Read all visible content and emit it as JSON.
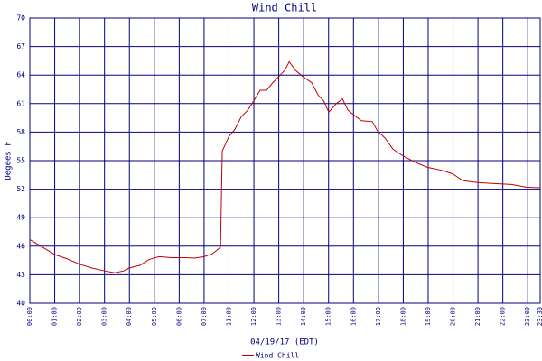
{
  "chart_data": {
    "type": "line",
    "title": "Wind Chill",
    "x_label": "04/19/17 (EDT)",
    "y_label": "Degees F",
    "xlim": [
      0,
      20.5
    ],
    "xticks": [
      {
        "value": 0,
        "label": "00:00"
      },
      {
        "value": 1,
        "label": "01:00"
      },
      {
        "value": 2,
        "label": "02:00"
      },
      {
        "value": 3,
        "label": "03:00"
      },
      {
        "value": 4,
        "label": "04:00"
      },
      {
        "value": 5,
        "label": "05:00"
      },
      {
        "value": 6,
        "label": "06:00"
      },
      {
        "value": 7,
        "label": "07:00"
      },
      {
        "value": 8,
        "label": "11:00"
      },
      {
        "value": 9,
        "label": "12:00"
      },
      {
        "value": 10,
        "label": "13:00"
      },
      {
        "value": 11,
        "label": "14:00"
      },
      {
        "value": 12,
        "label": "15:00"
      },
      {
        "value": 13,
        "label": "16:00"
      },
      {
        "value": 14,
        "label": "17:00"
      },
      {
        "value": 15,
        "label": "18:00"
      },
      {
        "value": 16,
        "label": "19:00"
      },
      {
        "value": 17,
        "label": "20:00"
      },
      {
        "value": 18,
        "label": "21:00"
      },
      {
        "value": 19,
        "label": "22:00"
      },
      {
        "value": 20,
        "label": "23:00"
      },
      {
        "value": 20.5,
        "label": "23:30"
      }
    ],
    "ylim": [
      40,
      70
    ],
    "yticks": [
      40,
      43,
      46,
      49,
      52,
      55,
      58,
      61,
      64,
      67,
      70
    ],
    "grid": true,
    "series": [
      {
        "name": "Wind Chill",
        "color": "#c00000",
        "x": [
          0,
          0.44,
          1.02,
          1.52,
          2.0,
          2.5,
          3.01,
          3.41,
          3.77,
          3.99,
          4.43,
          4.79,
          5.19,
          5.7,
          6.24,
          6.61,
          7.0,
          7.33,
          7.66,
          7.73,
          7.99,
          8.24,
          8.49,
          8.75,
          9.0,
          9.25,
          9.51,
          9.76,
          9.98,
          10.24,
          10.42,
          10.67,
          10.99,
          11.32,
          11.58,
          11.8,
          12.01,
          12.31,
          12.56,
          12.78,
          13.07,
          13.32,
          13.76,
          13.97,
          14.26,
          14.59,
          14.99,
          15.5,
          15.97,
          16.59,
          16.99,
          17.39,
          17.97,
          18.58,
          19.35,
          19.96,
          20.5
        ],
        "values": [
          46.7,
          46.0,
          45.1,
          44.65,
          44.1,
          43.7,
          43.4,
          43.2,
          43.4,
          43.7,
          44.0,
          44.6,
          44.9,
          44.8,
          44.8,
          44.75,
          44.9,
          45.2,
          45.9,
          56.0,
          57.5,
          58.3,
          59.6,
          60.3,
          61.3,
          62.4,
          62.4,
          63.2,
          63.8,
          64.5,
          65.4,
          64.5,
          63.8,
          63.2,
          61.9,
          61.3,
          60.1,
          61.0,
          61.5,
          60.3,
          59.7,
          59.2,
          59.1,
          58.1,
          57.4,
          56.2,
          55.5,
          54.8,
          54.3,
          53.95,
          53.6,
          52.9,
          52.7,
          52.6,
          52.5,
          52.2,
          52.15
        ]
      }
    ]
  }
}
